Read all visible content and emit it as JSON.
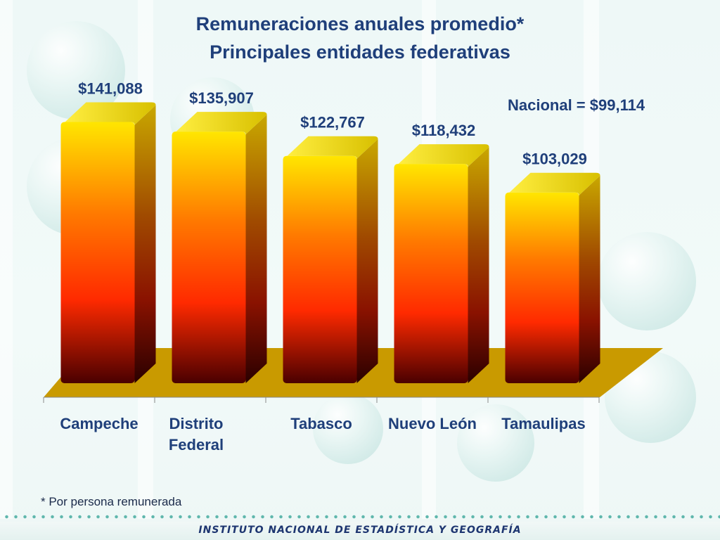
{
  "title_line1": "Remuneraciones anuales promedio*",
  "title_line2": "Principales entidades federativas",
  "nacional_label": "Nacional = $99,114",
  "footnote": "* Por persona remunerada",
  "institute": "INSTITUTO NACIONAL  DE ESTADÍSTICA Y GEOGRAFÍA",
  "chart_data": {
    "type": "bar",
    "categories": [
      [
        "Campeche"
      ],
      [
        "Distrito",
        "Federal"
      ],
      [
        "Tabasco"
      ],
      [
        "Nuevo León"
      ],
      [
        "Tamaulipas"
      ]
    ],
    "values": [
      141088,
      135907,
      122767,
      118432,
      103029
    ],
    "data_labels": [
      "$141,088",
      "$135,907",
      "$122,767",
      "$118,432",
      "$103,029"
    ],
    "reference_label": "Nacional = $99,114",
    "reference_value": 99114,
    "ylim": [
      0,
      150000
    ],
    "grid": false,
    "title": "Remuneraciones anuales promedio* Principales entidades federativas",
    "colors": {
      "bar_top": "#ffe600",
      "bar_mid": "#ff7a00",
      "bar_low": "#ff2a00",
      "bar_bottom": "#4a0000",
      "floor": "#c99a00",
      "label": "#1f3f7a"
    }
  }
}
